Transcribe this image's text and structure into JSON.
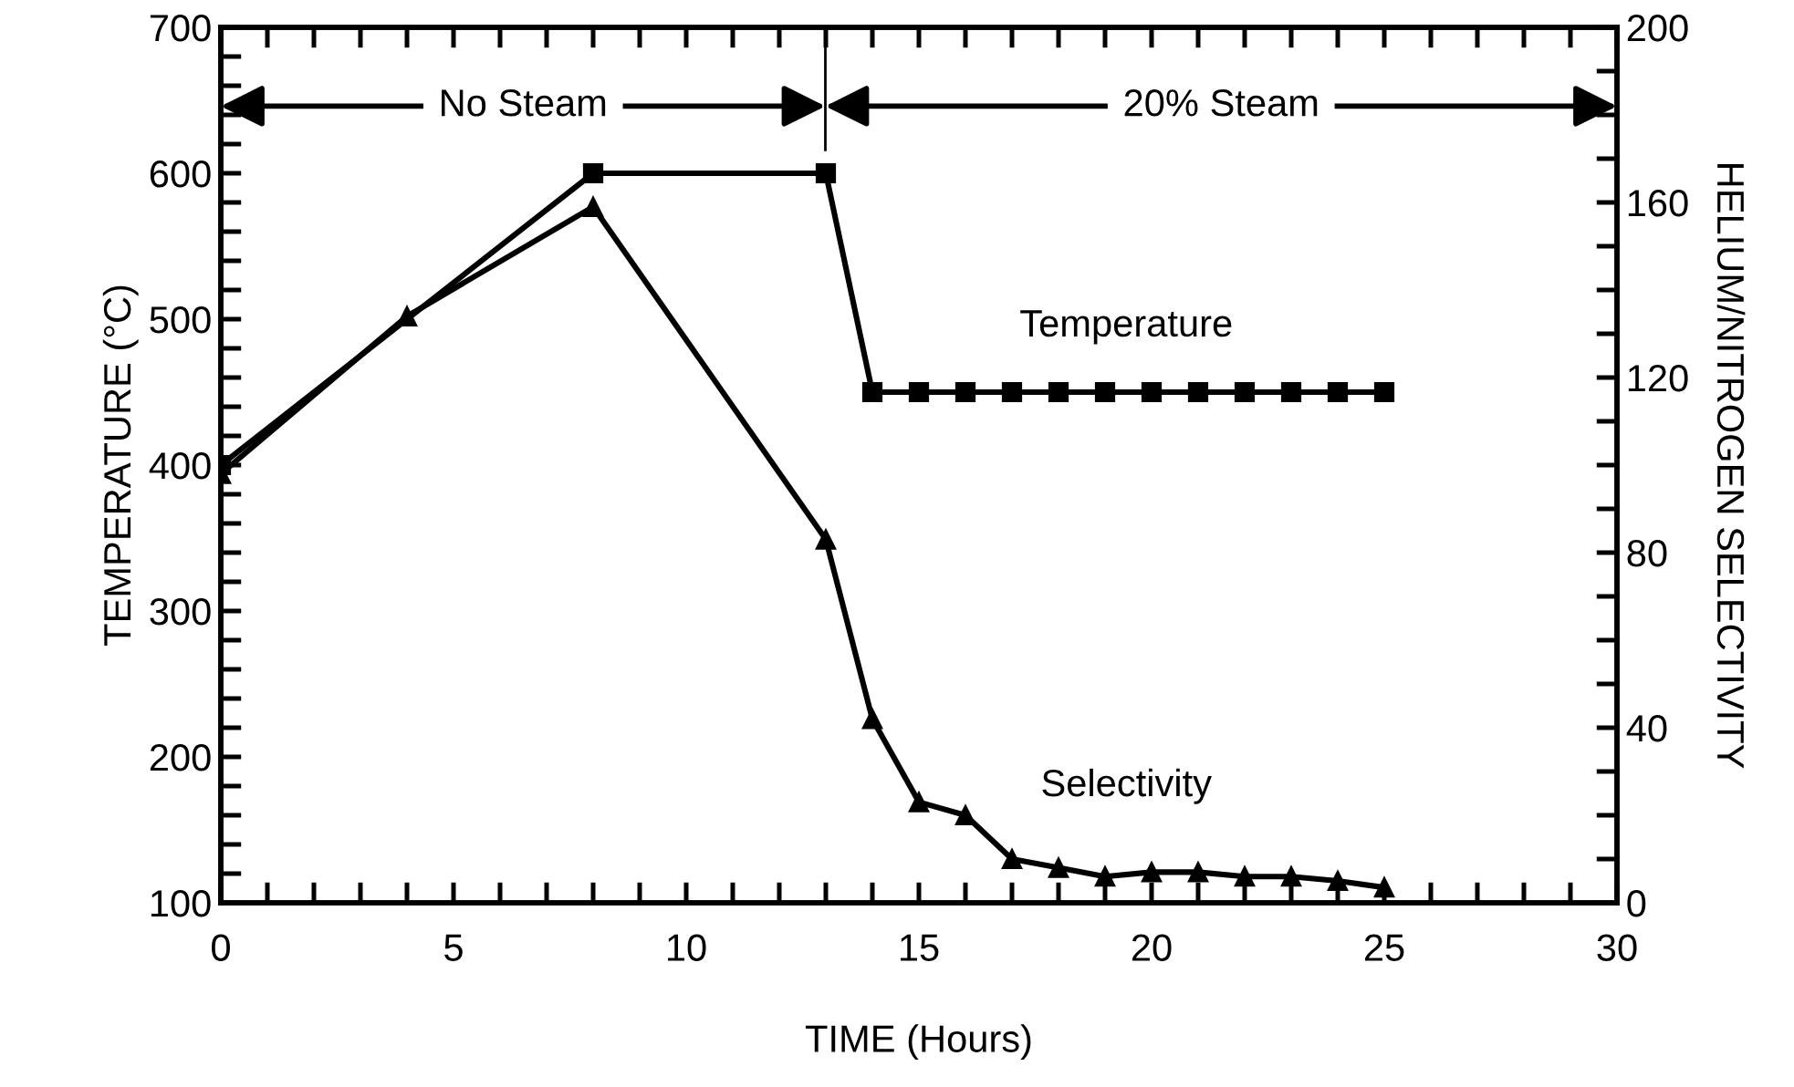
{
  "chart_data": {
    "type": "line",
    "xlabel": "TIME (Hours)",
    "ylabel": "TEMPERATURE (°C)",
    "y2label": "HELIUM/NITROGEN SELECTIVITY",
    "xlim": [
      0,
      30
    ],
    "xticks": [
      0,
      {
        "value": 1,
        "label": null
      },
      {
        "value": 2,
        "label": null
      },
      {
        "value": 3,
        "label": null
      },
      {
        "value": 4,
        "label": null
      },
      5,
      {
        "value": 6,
        "label": null
      },
      {
        "value": 7,
        "label": null
      },
      {
        "value": 8,
        "label": null
      },
      {
        "value": 9,
        "label": null
      },
      10,
      {
        "value": 11,
        "label": null
      },
      {
        "value": 12,
        "label": null
      },
      {
        "value": 13,
        "label": null
      },
      {
        "value": 14,
        "label": null
      },
      15,
      {
        "value": 16,
        "label": null
      },
      {
        "value": 17,
        "label": null
      },
      {
        "value": 18,
        "label": null
      },
      {
        "value": 19,
        "label": null
      },
      20,
      {
        "value": 21,
        "label": null
      },
      {
        "value": 22,
        "label": null
      },
      {
        "value": 23,
        "label": null
      },
      {
        "value": 24,
        "label": null
      },
      25,
      {
        "value": 26,
        "label": null
      },
      {
        "value": 27,
        "label": null
      },
      {
        "value": 28,
        "label": null
      },
      {
        "value": 29,
        "label": null
      },
      30
    ],
    "ylim": [
      100,
      700
    ],
    "yticks": [
      100,
      {
        "value": 120,
        "label": null
      },
      {
        "value": 140,
        "label": null
      },
      {
        "value": 160,
        "label": null
      },
      {
        "value": 180,
        "label": null
      },
      200,
      {
        "value": 220,
        "label": null
      },
      {
        "value": 240,
        "label": null
      },
      {
        "value": 260,
        "label": null
      },
      {
        "value": 280,
        "label": null
      },
      300,
      {
        "value": 320,
        "label": null
      },
      {
        "value": 340,
        "label": null
      },
      {
        "value": 360,
        "label": null
      },
      {
        "value": 380,
        "label": null
      },
      400,
      {
        "value": 420,
        "label": null
      },
      {
        "value": 440,
        "label": null
      },
      {
        "value": 460,
        "label": null
      },
      {
        "value": 480,
        "label": null
      },
      500,
      {
        "value": 520,
        "label": null
      },
      {
        "value": 540,
        "label": null
      },
      {
        "value": 560,
        "label": null
      },
      {
        "value": 580,
        "label": null
      },
      600,
      {
        "value": 620,
        "label": null
      },
      {
        "value": 640,
        "label": null
      },
      {
        "value": 660,
        "label": null
      },
      {
        "value": 680,
        "label": null
      },
      700
    ],
    "y2lim": [
      0,
      200
    ],
    "y2ticks": [
      0,
      {
        "value": 10,
        "label": null
      },
      {
        "value": 20,
        "label": null
      },
      {
        "value": 30,
        "label": null
      },
      40,
      {
        "value": 50,
        "label": null
      },
      {
        "value": 60,
        "label": null
      },
      {
        "value": 70,
        "label": null
      },
      80,
      {
        "value": 90,
        "label": null
      },
      {
        "value": 100,
        "label": null
      },
      {
        "value": 110,
        "label": null
      },
      120,
      {
        "value": 130,
        "label": null
      },
      {
        "value": 140,
        "label": null
      },
      {
        "value": 150,
        "label": null
      },
      160,
      {
        "value": 170,
        "label": null
      },
      {
        "value": 180,
        "label": null
      },
      {
        "value": 190,
        "label": null
      },
      200
    ],
    "grid": false,
    "legend": false,
    "line_style": "solid",
    "series": [
      {
        "name": "Temperature",
        "color": "#000000",
        "marker": "square",
        "x": [
          0,
          8,
          13,
          14,
          15,
          16,
          17,
          18,
          19,
          20,
          21,
          22,
          23,
          24,
          25
        ],
        "values": [
          400,
          600,
          600,
          450,
          450,
          450,
          450,
          450,
          450,
          450,
          450,
          450,
          450,
          450,
          450
        ]
      },
      {
        "name": "Selectivity",
        "color": "#000000",
        "marker": "triangle",
        "axis": "y2",
        "x": [
          0,
          4,
          8,
          13,
          14,
          15,
          16,
          17,
          18,
          19,
          20,
          21,
          22,
          23,
          24,
          25
        ],
        "values": [
          98,
          134,
          159,
          83,
          42,
          23,
          20,
          10,
          8,
          6,
          7,
          7,
          6,
          6,
          5,
          3.5
        ]
      }
    ],
    "annotations": [
      "No Steam",
      "20% Steam"
    ]
  }
}
